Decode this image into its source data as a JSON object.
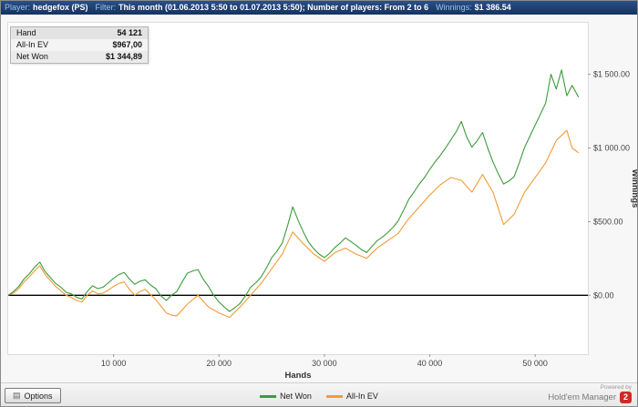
{
  "title_bar": {
    "player_label": "Player:",
    "player_value": "hedgefox (PS)",
    "filter_label": "Filter:",
    "filter_value": "This month (01.06.2013 5:50 to 01.07.2013 5:50); Number of players: From 2 to 6",
    "winnings_label": "Winnings:",
    "winnings_value": "$1 386.54"
  },
  "stats_box": {
    "rows": [
      {
        "label": "Hand",
        "value": "54 121"
      },
      {
        "label": "All-In EV",
        "value": "$967,00"
      },
      {
        "label": "Net Won",
        "value": "$1 344,89"
      }
    ]
  },
  "status_bar": {
    "options_label": "Options",
    "powered_by": "Powered by",
    "brand": "Hold'em Manager",
    "brand_badge": "2",
    "brand_badge_color": "#cf2a27"
  },
  "chart_data": {
    "type": "line",
    "title": "",
    "xlabel": "Hands",
    "ylabel": "Winnings",
    "xlim": [
      0,
      55000
    ],
    "ylim": [
      -400,
      1850
    ],
    "grid": false,
    "legend_position": "bottom",
    "zero_line": 0,
    "x_ticks": [
      {
        "value": 10000,
        "label": "10 000"
      },
      {
        "value": 20000,
        "label": "20 000"
      },
      {
        "value": 30000,
        "label": "30 000"
      },
      {
        "value": 40000,
        "label": "40 000"
      },
      {
        "value": 50000,
        "label": "50 000"
      }
    ],
    "y_ticks": [
      {
        "value": 0,
        "label": "$0.00"
      },
      {
        "value": 500,
        "label": "$500.00"
      },
      {
        "value": 1000,
        "label": "$1 000.00"
      },
      {
        "value": 1500,
        "label": "$1 500.00"
      }
    ],
    "series": [
      {
        "name": "Net Won",
        "color": "#3d9b3d",
        "final_value": 1344.89,
        "points": [
          [
            0,
            0
          ],
          [
            500,
            25
          ],
          [
            1000,
            60
          ],
          [
            1500,
            110
          ],
          [
            2000,
            145
          ],
          [
            2500,
            190
          ],
          [
            3000,
            225
          ],
          [
            3500,
            160
          ],
          [
            4000,
            120
          ],
          [
            4500,
            80
          ],
          [
            5000,
            55
          ],
          [
            5500,
            20
          ],
          [
            6000,
            10
          ],
          [
            6500,
            -15
          ],
          [
            7000,
            -25
          ],
          [
            7500,
            25
          ],
          [
            8000,
            65
          ],
          [
            8500,
            45
          ],
          [
            9000,
            55
          ],
          [
            9500,
            85
          ],
          [
            10000,
            115
          ],
          [
            10500,
            140
          ],
          [
            11000,
            155
          ],
          [
            11500,
            110
          ],
          [
            12000,
            75
          ],
          [
            12500,
            95
          ],
          [
            13000,
            105
          ],
          [
            13500,
            70
          ],
          [
            14000,
            45
          ],
          [
            14500,
            -5
          ],
          [
            15000,
            -35
          ],
          [
            15500,
            0
          ],
          [
            16000,
            25
          ],
          [
            16500,
            90
          ],
          [
            17000,
            150
          ],
          [
            17500,
            165
          ],
          [
            18000,
            175
          ],
          [
            18500,
            110
          ],
          [
            19000,
            60
          ],
          [
            19500,
            0
          ],
          [
            20000,
            -45
          ],
          [
            20500,
            -80
          ],
          [
            21000,
            -110
          ],
          [
            21500,
            -85
          ],
          [
            22000,
            -55
          ],
          [
            22500,
            -5
          ],
          [
            23000,
            55
          ],
          [
            23500,
            85
          ],
          [
            24000,
            125
          ],
          [
            24500,
            185
          ],
          [
            25000,
            255
          ],
          [
            25500,
            300
          ],
          [
            26000,
            355
          ],
          [
            26500,
            470
          ],
          [
            27000,
            600
          ],
          [
            27500,
            510
          ],
          [
            28000,
            430
          ],
          [
            28500,
            360
          ],
          [
            29000,
            315
          ],
          [
            29500,
            280
          ],
          [
            30000,
            255
          ],
          [
            30500,
            285
          ],
          [
            31000,
            325
          ],
          [
            31500,
            355
          ],
          [
            32000,
            390
          ],
          [
            32500,
            365
          ],
          [
            33000,
            340
          ],
          [
            33500,
            310
          ],
          [
            34000,
            290
          ],
          [
            34500,
            330
          ],
          [
            35000,
            370
          ],
          [
            35500,
            395
          ],
          [
            36000,
            425
          ],
          [
            36500,
            460
          ],
          [
            37000,
            505
          ],
          [
            37500,
            575
          ],
          [
            38000,
            650
          ],
          [
            38500,
            700
          ],
          [
            39000,
            755
          ],
          [
            39500,
            800
          ],
          [
            40000,
            855
          ],
          [
            40500,
            905
          ],
          [
            41000,
            950
          ],
          [
            41500,
            1000
          ],
          [
            42000,
            1055
          ],
          [
            42500,
            1110
          ],
          [
            43000,
            1180
          ],
          [
            43500,
            1075
          ],
          [
            44000,
            1005
          ],
          [
            44500,
            1050
          ],
          [
            45000,
            1105
          ],
          [
            45500,
            1000
          ],
          [
            46000,
            905
          ],
          [
            46500,
            825
          ],
          [
            47000,
            755
          ],
          [
            47500,
            775
          ],
          [
            48000,
            805
          ],
          [
            48500,
            900
          ],
          [
            49000,
            1005
          ],
          [
            49500,
            1080
          ],
          [
            50000,
            1155
          ],
          [
            50500,
            1230
          ],
          [
            51000,
            1305
          ],
          [
            51500,
            1500
          ],
          [
            52000,
            1400
          ],
          [
            52500,
            1530
          ],
          [
            53000,
            1355
          ],
          [
            53500,
            1425
          ],
          [
            54121,
            1345
          ]
        ]
      },
      {
        "name": "All-In EV",
        "color": "#f09c36",
        "final_value": 967.0,
        "points": [
          [
            0,
            0
          ],
          [
            500,
            15
          ],
          [
            1000,
            45
          ],
          [
            1500,
            90
          ],
          [
            2000,
            125
          ],
          [
            2500,
            165
          ],
          [
            3000,
            200
          ],
          [
            3500,
            140
          ],
          [
            4000,
            100
          ],
          [
            4500,
            60
          ],
          [
            5000,
            30
          ],
          [
            5500,
            0
          ],
          [
            6000,
            -15
          ],
          [
            6500,
            -35
          ],
          [
            7000,
            -45
          ],
          [
            7500,
            0
          ],
          [
            8000,
            30
          ],
          [
            8500,
            10
          ],
          [
            9000,
            15
          ],
          [
            9500,
            35
          ],
          [
            10000,
            60
          ],
          [
            10500,
            80
          ],
          [
            11000,
            90
          ],
          [
            11500,
            40
          ],
          [
            12000,
            0
          ],
          [
            12500,
            25
          ],
          [
            13000,
            40
          ],
          [
            13500,
            5
          ],
          [
            14000,
            -30
          ],
          [
            14500,
            -75
          ],
          [
            15000,
            -120
          ],
          [
            15500,
            -135
          ],
          [
            16000,
            -140
          ],
          [
            16500,
            -100
          ],
          [
            17000,
            -60
          ],
          [
            17500,
            -30
          ],
          [
            18000,
            0
          ],
          [
            18500,
            -40
          ],
          [
            19000,
            -80
          ],
          [
            19500,
            -100
          ],
          [
            20000,
            -120
          ],
          [
            20500,
            -135
          ],
          [
            21000,
            -150
          ],
          [
            21500,
            -115
          ],
          [
            22000,
            -80
          ],
          [
            22500,
            -40
          ],
          [
            23000,
            0
          ],
          [
            23500,
            40
          ],
          [
            24000,
            80
          ],
          [
            24500,
            130
          ],
          [
            25000,
            180
          ],
          [
            25500,
            230
          ],
          [
            26000,
            280
          ],
          [
            26500,
            355
          ],
          [
            27000,
            430
          ],
          [
            27500,
            390
          ],
          [
            28000,
            350
          ],
          [
            28500,
            315
          ],
          [
            29000,
            280
          ],
          [
            29500,
            255
          ],
          [
            30000,
            230
          ],
          [
            30500,
            260
          ],
          [
            31000,
            290
          ],
          [
            31500,
            305
          ],
          [
            32000,
            320
          ],
          [
            32500,
            300
          ],
          [
            33000,
            280
          ],
          [
            33500,
            265
          ],
          [
            34000,
            250
          ],
          [
            34500,
            285
          ],
          [
            35000,
            320
          ],
          [
            35500,
            345
          ],
          [
            36000,
            370
          ],
          [
            36500,
            395
          ],
          [
            37000,
            420
          ],
          [
            37500,
            470
          ],
          [
            38000,
            520
          ],
          [
            38500,
            560
          ],
          [
            39000,
            600
          ],
          [
            39500,
            640
          ],
          [
            40000,
            680
          ],
          [
            40500,
            715
          ],
          [
            41000,
            750
          ],
          [
            41500,
            775
          ],
          [
            42000,
            800
          ],
          [
            42500,
            790
          ],
          [
            43000,
            780
          ],
          [
            43500,
            740
          ],
          [
            44000,
            700
          ],
          [
            44500,
            760
          ],
          [
            45000,
            820
          ],
          [
            45500,
            760
          ],
          [
            46000,
            700
          ],
          [
            46500,
            590
          ],
          [
            47000,
            480
          ],
          [
            47500,
            515
          ],
          [
            48000,
            550
          ],
          [
            48500,
            625
          ],
          [
            49000,
            700
          ],
          [
            49500,
            750
          ],
          [
            50000,
            800
          ],
          [
            50500,
            850
          ],
          [
            51000,
            900
          ],
          [
            51500,
            975
          ],
          [
            52000,
            1050
          ],
          [
            52500,
            1085
          ],
          [
            53000,
            1120
          ],
          [
            53500,
            1000
          ],
          [
            54121,
            967
          ]
        ]
      }
    ]
  }
}
